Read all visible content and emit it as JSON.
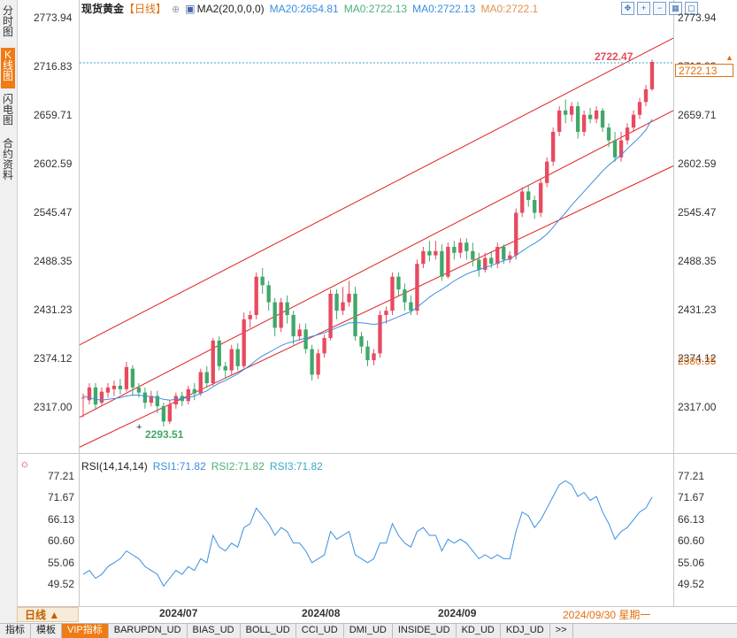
{
  "side_tabs": [
    {
      "label": "分时图",
      "active": false
    },
    {
      "label": "K线图",
      "active": true
    },
    {
      "label": "闪电图",
      "active": false
    },
    {
      "label": "合约资料",
      "active": false
    }
  ],
  "legend": {
    "title": "现货黄金",
    "period": "【日线】",
    "ma_label": "MA2(20,0,0,0)",
    "ma20": "MA20:2654.81",
    "ma0a": "MA0:2722.13",
    "ma0b": "MA0:2722.13",
    "ma0c": "MA0:2722.1"
  },
  "price_axis": [
    "2773.94",
    "2716.83",
    "2659.71",
    "2602.59",
    "2545.47",
    "2488.35",
    "2431.23",
    "2374.12",
    "2317.00"
  ],
  "right_axis_extra": {
    "current": "2722.13",
    "low_mark": "2380.35"
  },
  "annotations": {
    "high": "2722.47",
    "low": "2293.51"
  },
  "rsi": {
    "label": "RSI(14,14,14)",
    "rsi1": "RSI1:71.82",
    "rsi2": "RSI2:71.82",
    "rsi3": "RSI3:71.82",
    "axis": [
      "77.21",
      "71.67",
      "66.13",
      "60.60",
      "55.06",
      "49.52"
    ]
  },
  "x_axis": {
    "labels": [
      "2024/07",
      "2024/08",
      "2024/09"
    ],
    "cursor": "2024/09/30 星期一"
  },
  "period_selector": "日线 ▲",
  "bottom_tabs": [
    "指标",
    "模板",
    "VIP指标",
    "BARUPDN_UD",
    "BIAS_UD",
    "BOLL_UD",
    "CCI_UD",
    "DMI_UD",
    "INSIDE_UD",
    "KD_UD",
    "KDJ_UD",
    ">>"
  ],
  "colors": {
    "up": "#e84a5f",
    "down": "#3fa86a",
    "ma": "#3a8ee0",
    "channel": "#e02020",
    "accent": "#f07a14"
  },
  "chart_data": {
    "type": "candlestick",
    "ylim": [
      2280,
      2780
    ],
    "candles": [
      [
        2327,
        2328,
        2305,
        2333
      ],
      [
        2325,
        2340,
        2320,
        2345
      ],
      [
        2340,
        2320,
        2315,
        2345
      ],
      [
        2322,
        2335,
        2318,
        2340
      ],
      [
        2334,
        2340,
        2328,
        2345
      ],
      [
        2338,
        2342,
        2330,
        2348
      ],
      [
        2342,
        2338,
        2332,
        2350
      ],
      [
        2338,
        2364,
        2335,
        2370
      ],
      [
        2362,
        2340,
        2330,
        2366
      ],
      [
        2340,
        2334,
        2328,
        2345
      ],
      [
        2334,
        2322,
        2315,
        2340
      ],
      [
        2322,
        2330,
        2318,
        2336
      ],
      [
        2330,
        2318,
        2310,
        2336
      ],
      [
        2318,
        2300,
        2294,
        2322
      ],
      [
        2300,
        2320,
        2297,
        2325
      ],
      [
        2320,
        2330,
        2315,
        2334
      ],
      [
        2330,
        2324,
        2318,
        2335
      ],
      [
        2324,
        2338,
        2320,
        2342
      ],
      [
        2338,
        2333,
        2325,
        2345
      ],
      [
        2333,
        2358,
        2330,
        2362
      ],
      [
        2358,
        2345,
        2340,
        2365
      ],
      [
        2345,
        2395,
        2342,
        2398
      ],
      [
        2395,
        2365,
        2360,
        2400
      ],
      [
        2365,
        2360,
        2350,
        2370
      ],
      [
        2360,
        2385,
        2355,
        2390
      ],
      [
        2385,
        2365,
        2360,
        2392
      ],
      [
        2365,
        2420,
        2362,
        2428
      ],
      [
        2420,
        2425,
        2410,
        2430
      ],
      [
        2425,
        2470,
        2420,
        2475
      ],
      [
        2470,
        2460,
        2450,
        2480
      ],
      [
        2460,
        2440,
        2430,
        2465
      ],
      [
        2440,
        2410,
        2400,
        2445
      ],
      [
        2410,
        2440,
        2405,
        2445
      ],
      [
        2440,
        2425,
        2415,
        2448
      ],
      [
        2425,
        2400,
        2390,
        2430
      ],
      [
        2400,
        2408,
        2395,
        2415
      ],
      [
        2408,
        2385,
        2380,
        2415
      ],
      [
        2385,
        2355,
        2348,
        2390
      ],
      [
        2355,
        2380,
        2350,
        2385
      ],
      [
        2380,
        2398,
        2375,
        2402
      ],
      [
        2398,
        2450,
        2395,
        2455
      ],
      [
        2450,
        2430,
        2420,
        2455
      ],
      [
        2430,
        2440,
        2425,
        2458
      ],
      [
        2440,
        2450,
        2435,
        2465
      ],
      [
        2450,
        2400,
        2395,
        2458
      ],
      [
        2400,
        2388,
        2380,
        2405
      ],
      [
        2388,
        2372,
        2365,
        2395
      ],
      [
        2372,
        2380,
        2366,
        2385
      ],
      [
        2380,
        2425,
        2375,
        2430
      ],
      [
        2425,
        2430,
        2415,
        2435
      ],
      [
        2430,
        2470,
        2425,
        2475
      ],
      [
        2470,
        2455,
        2448,
        2475
      ],
      [
        2455,
        2440,
        2430,
        2462
      ],
      [
        2440,
        2430,
        2425,
        2448
      ],
      [
        2430,
        2485,
        2425,
        2490
      ],
      [
        2485,
        2500,
        2480,
        2505
      ],
      [
        2500,
        2495,
        2488,
        2512
      ],
      [
        2495,
        2500,
        2490,
        2512
      ],
      [
        2500,
        2470,
        2465,
        2508
      ],
      [
        2470,
        2505,
        2468,
        2510
      ],
      [
        2505,
        2498,
        2490,
        2512
      ],
      [
        2498,
        2510,
        2492,
        2515
      ],
      [
        2510,
        2500,
        2490,
        2515
      ],
      [
        2500,
        2490,
        2482,
        2510
      ],
      [
        2490,
        2478,
        2470,
        2498
      ],
      [
        2478,
        2492,
        2475,
        2498
      ],
      [
        2492,
        2485,
        2480,
        2500
      ],
      [
        2485,
        2505,
        2480,
        2510
      ],
      [
        2505,
        2490,
        2485,
        2508
      ],
      [
        2490,
        2495,
        2486,
        2500
      ],
      [
        2495,
        2545,
        2490,
        2550
      ],
      [
        2545,
        2570,
        2540,
        2575
      ],
      [
        2570,
        2560,
        2552,
        2578
      ],
      [
        2560,
        2545,
        2538,
        2565
      ],
      [
        2545,
        2580,
        2540,
        2585
      ],
      [
        2580,
        2605,
        2575,
        2610
      ],
      [
        2605,
        2640,
        2600,
        2645
      ],
      [
        2640,
        2665,
        2635,
        2670
      ],
      [
        2665,
        2660,
        2650,
        2678
      ],
      [
        2660,
        2670,
        2652,
        2675
      ],
      [
        2670,
        2640,
        2632,
        2675
      ],
      [
        2640,
        2660,
        2635,
        2665
      ],
      [
        2660,
        2655,
        2650,
        2668
      ],
      [
        2655,
        2665,
        2650,
        2670
      ],
      [
        2665,
        2645,
        2640,
        2668
      ],
      [
        2645,
        2630,
        2622,
        2650
      ],
      [
        2630,
        2610,
        2605,
        2640
      ],
      [
        2610,
        2630,
        2605,
        2640
      ],
      [
        2630,
        2645,
        2625,
        2650
      ],
      [
        2645,
        2660,
        2640,
        2665
      ],
      [
        2660,
        2675,
        2655,
        2680
      ],
      [
        2675,
        2690,
        2670,
        2695
      ],
      [
        2690,
        2722,
        2688,
        2725
      ]
    ],
    "ma20": [
      2330,
      2328,
      2326,
      2325,
      2326,
      2327,
      2328,
      2330,
      2331,
      2331,
      2330,
      2329,
      2328,
      2326,
      2325,
      2326,
      2327,
      2328,
      2330,
      2333,
      2336,
      2341,
      2345,
      2348,
      2352,
      2356,
      2361,
      2366,
      2372,
      2377,
      2381,
      2385,
      2389,
      2392,
      2394,
      2396,
      2398,
      2400,
      2402,
      2404,
      2407,
      2410,
      2413,
      2416,
      2416,
      2416,
      2415,
      2414,
      2415,
      2417,
      2420,
      2423,
      2426,
      2429,
      2434,
      2440,
      2446,
      2451,
      2455,
      2460,
      2465,
      2469,
      2473,
      2476,
      2478,
      2481,
      2483,
      2486,
      2489,
      2491,
      2495,
      2500,
      2505,
      2509,
      2514,
      2520,
      2528,
      2537,
      2545,
      2554,
      2562,
      2570,
      2578,
      2586,
      2594,
      2601,
      2607,
      2613,
      2620,
      2627,
      2634,
      2642,
      2654.81
    ],
    "rsi": [
      52,
      53,
      51,
      52,
      54,
      55,
      56,
      58,
      57,
      56,
      54,
      53,
      52,
      49,
      51,
      53,
      52,
      54,
      53,
      56,
      55,
      62,
      59,
      58,
      60,
      59,
      64,
      65,
      69,
      67,
      65,
      62,
      64,
      63,
      60,
      60,
      58,
      55,
      56,
      57,
      63,
      61,
      62,
      63,
      57,
      56,
      55,
      56,
      60,
      60,
      65,
      62,
      60,
      59,
      63,
      64,
      62,
      62,
      58,
      61,
      60,
      61,
      60,
      58,
      56,
      57,
      56,
      57,
      56,
      56,
      63,
      68,
      67,
      64,
      66,
      69,
      72,
      75,
      76,
      75,
      72,
      73,
      71,
      72,
      68,
      65,
      61,
      63,
      64,
      66,
      68,
      69,
      71.82
    ],
    "channel": {
      "upper": [
        2390,
        2750
      ],
      "middle": [
        2305,
        2665
      ],
      "lower": [
        2270,
        2600
      ]
    }
  }
}
